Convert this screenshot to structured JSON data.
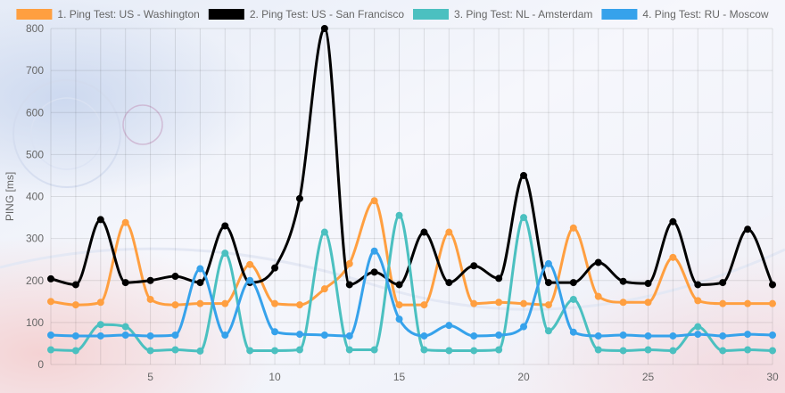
{
  "chart_data": {
    "type": "line",
    "title": "",
    "xlabel": "",
    "ylabel": "PING [ms]",
    "xlim": [
      1,
      30
    ],
    "ylim": [
      0,
      800
    ],
    "x_ticks": [
      5,
      10,
      15,
      20,
      25,
      30
    ],
    "y_ticks": [
      0,
      100,
      200,
      300,
      400,
      500,
      600,
      700,
      800
    ],
    "grid": true,
    "legend_position": "top",
    "x": [
      1,
      2,
      3,
      4,
      5,
      6,
      7,
      8,
      9,
      10,
      11,
      12,
      13,
      14,
      15,
      16,
      17,
      18,
      19,
      20,
      21,
      22,
      23,
      24,
      25,
      26,
      27,
      28,
      29,
      30
    ],
    "series": [
      {
        "name": "1. Ping Test: US - Washington",
        "color": "#ff9f40",
        "values": [
          150,
          142,
          148,
          338,
          155,
          142,
          145,
          145,
          238,
          145,
          142,
          180,
          240,
          390,
          142,
          142,
          315,
          145,
          148,
          145,
          142,
          325,
          162,
          148,
          148,
          255,
          152,
          145,
          145,
          145
        ]
      },
      {
        "name": "2. Ping Test: US - San Francisco",
        "color": "#000000",
        "values": [
          204,
          190,
          345,
          195,
          200,
          210,
          195,
          330,
          195,
          230,
          395,
          800,
          190,
          220,
          190,
          315,
          195,
          235,
          205,
          450,
          195,
          195,
          243,
          198,
          193,
          340,
          190,
          195,
          322,
          190
        ]
      },
      {
        "name": "3. Ping Test: NL - Amsterdam",
        "color": "#4bc0c0",
        "values": [
          35,
          33,
          95,
          90,
          33,
          35,
          32,
          265,
          33,
          33,
          35,
          315,
          35,
          35,
          355,
          35,
          33,
          33,
          35,
          350,
          80,
          155,
          35,
          33,
          35,
          33,
          90,
          33,
          35,
          33
        ]
      },
      {
        "name": "4. Ping Test: RU - Moscow",
        "color": "#36a2eb",
        "values": [
          70,
          68,
          68,
          70,
          68,
          70,
          228,
          70,
          200,
          78,
          72,
          70,
          68,
          270,
          108,
          68,
          93,
          68,
          70,
          90,
          240,
          77,
          68,
          70,
          68,
          68,
          72,
          68,
          72,
          70
        ]
      }
    ]
  }
}
